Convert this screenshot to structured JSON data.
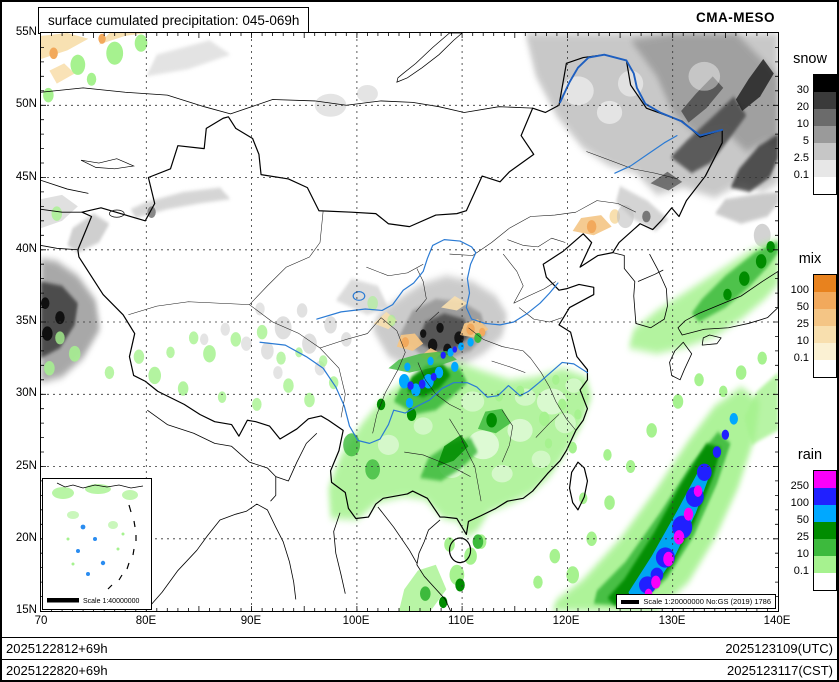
{
  "header": {
    "title": "surface cumulated precipitation: 045-069h",
    "model": "CMA-MESO"
  },
  "axes": {
    "lat_ticks": [
      "55N",
      "50N",
      "45N",
      "40N",
      "35N",
      "30N",
      "25N",
      "20N",
      "15N"
    ],
    "lon_ticks": [
      "70",
      "80E",
      "90E",
      "100E",
      "110E",
      "120E",
      "130E",
      "140E"
    ]
  },
  "legends": {
    "snow": {
      "title": "snow",
      "values": [
        "30",
        "20",
        "10",
        "5",
        "2.5",
        "0.1"
      ],
      "colors": [
        "#000000",
        "#3a3a3a",
        "#6b6b6b",
        "#9a9a9a",
        "#c6c6c6",
        "#e7e7e7",
        "#ffffff"
      ]
    },
    "mix": {
      "title": "mix",
      "values": [
        "100",
        "50",
        "25",
        "10",
        "0.1"
      ],
      "colors": [
        "#e8821e",
        "#f2a95c",
        "#f4c585",
        "#f8dfae",
        "#fbf1d3",
        "#ffffff"
      ]
    },
    "rain": {
      "title": "rain",
      "values": [
        "250",
        "100",
        "50",
        "25",
        "10",
        "0.1"
      ],
      "colors": [
        "#fa00fa",
        "#2020ff",
        "#00a8ff",
        "#008c00",
        "#3dba3d",
        "#a6f28f",
        "#ffffff"
      ]
    }
  },
  "map": {
    "scale_note": "Scale 1:20000000 No:GS (2019) 1786",
    "inset_scale_note": "Scale 1:40000000"
  },
  "footer": {
    "init_utc": "2025122812+69h",
    "init_cst": "2025122820+69h",
    "valid_utc": "2025123109(UTC)",
    "valid_cst": "2025123117(CST)"
  }
}
